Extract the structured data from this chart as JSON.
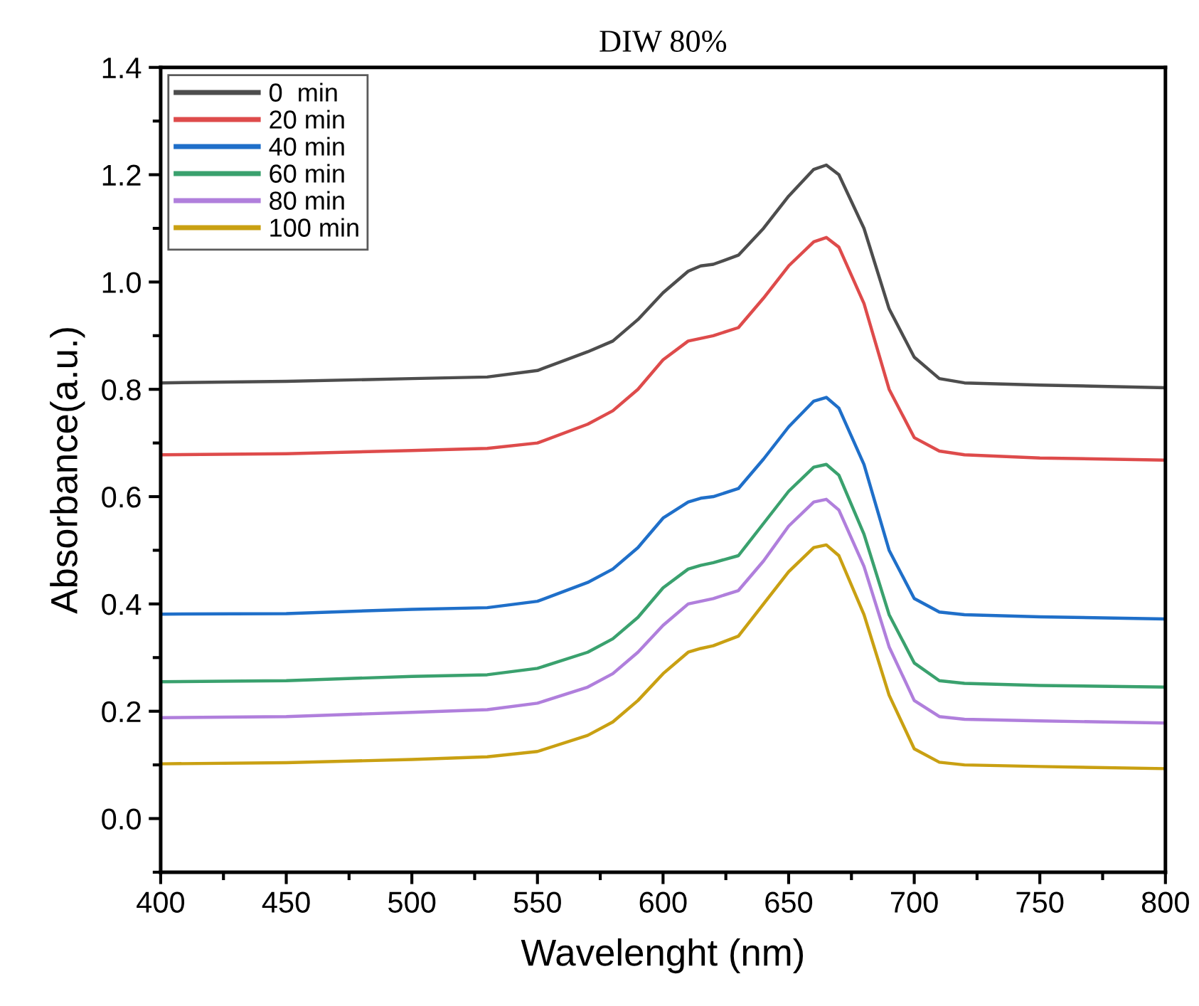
{
  "chart_data": {
    "type": "line",
    "title": "DIW 80%",
    "xlabel": "Wavelenght (nm)",
    "ylabel": "Absorbance(a.u.)",
    "x": [
      400,
      450,
      500,
      530,
      550,
      570,
      580,
      590,
      600,
      610,
      615,
      620,
      630,
      640,
      650,
      660,
      665,
      670,
      680,
      690,
      700,
      710,
      720,
      750,
      800
    ],
    "series": [
      {
        "name": "0  min",
        "color": "#4d4d4d",
        "values": [
          0.812,
          0.815,
          0.82,
          0.823,
          0.835,
          0.87,
          0.89,
          0.93,
          0.98,
          1.02,
          1.03,
          1.033,
          1.05,
          1.1,
          1.16,
          1.21,
          1.218,
          1.2,
          1.1,
          0.95,
          0.86,
          0.82,
          0.812,
          0.808,
          0.803
        ]
      },
      {
        "name": "20 min",
        "color": "#de4b4b",
        "values": [
          0.678,
          0.68,
          0.686,
          0.69,
          0.7,
          0.735,
          0.76,
          0.8,
          0.855,
          0.89,
          0.895,
          0.9,
          0.915,
          0.97,
          1.03,
          1.075,
          1.083,
          1.065,
          0.96,
          0.8,
          0.71,
          0.685,
          0.678,
          0.672,
          0.668
        ]
      },
      {
        "name": "40 min",
        "color": "#1f6fc9",
        "values": [
          0.381,
          0.382,
          0.39,
          0.393,
          0.405,
          0.44,
          0.465,
          0.505,
          0.56,
          0.59,
          0.597,
          0.6,
          0.615,
          0.67,
          0.73,
          0.778,
          0.785,
          0.765,
          0.66,
          0.5,
          0.41,
          0.385,
          0.38,
          0.376,
          0.372
        ]
      },
      {
        "name": "60 min",
        "color": "#3aa16e",
        "values": [
          0.255,
          0.257,
          0.265,
          0.268,
          0.28,
          0.31,
          0.335,
          0.375,
          0.43,
          0.465,
          0.472,
          0.477,
          0.49,
          0.55,
          0.61,
          0.655,
          0.66,
          0.64,
          0.53,
          0.38,
          0.29,
          0.257,
          0.252,
          0.248,
          0.245
        ]
      },
      {
        "name": "80 min",
        "color": "#b07fdc",
        "values": [
          0.188,
          0.19,
          0.198,
          0.203,
          0.215,
          0.245,
          0.27,
          0.31,
          0.36,
          0.4,
          0.405,
          0.41,
          0.425,
          0.48,
          0.545,
          0.59,
          0.595,
          0.575,
          0.47,
          0.32,
          0.22,
          0.19,
          0.185,
          0.182,
          0.178
        ]
      },
      {
        "name": "100 min",
        "color": "#c9a012",
        "values": [
          0.102,
          0.104,
          0.11,
          0.115,
          0.125,
          0.155,
          0.18,
          0.22,
          0.27,
          0.31,
          0.317,
          0.322,
          0.34,
          0.4,
          0.46,
          0.505,
          0.51,
          0.49,
          0.38,
          0.23,
          0.13,
          0.105,
          0.1,
          0.097,
          0.093
        ]
      }
    ],
    "xlim": [
      400,
      800
    ],
    "ylim": [
      -0.1,
      1.4
    ],
    "xticks": [
      400,
      {
        "value": 425,
        "label": null
      },
      450,
      {
        "value": 475,
        "label": null
      },
      500,
      {
        "value": 525,
        "label": null
      },
      550,
      {
        "value": 575,
        "label": null
      },
      600,
      {
        "value": 625,
        "label": null
      },
      650,
      {
        "value": 675,
        "label": null
      },
      700,
      {
        "value": 725,
        "label": null
      },
      750,
      {
        "value": 775,
        "label": null
      },
      800
    ],
    "yticks": [
      {
        "value": -0.1,
        "label": null
      },
      {
        "value": 0.0,
        "label": "0.0"
      },
      {
        "value": 0.1,
        "label": null
      },
      0.2,
      {
        "value": 0.3,
        "label": null
      },
      0.4,
      {
        "value": 0.5,
        "label": null
      },
      0.6,
      {
        "value": 0.7,
        "label": null
      },
      0.8,
      {
        "value": 0.9,
        "label": null
      },
      {
        "value": 1.0,
        "label": "1.0"
      },
      {
        "value": 1.1,
        "label": null
      },
      1.2,
      {
        "value": 1.3,
        "label": null
      },
      1.4
    ],
    "legend": "top left",
    "grid": false,
    "marker": "none",
    "line_style": "solid"
  }
}
